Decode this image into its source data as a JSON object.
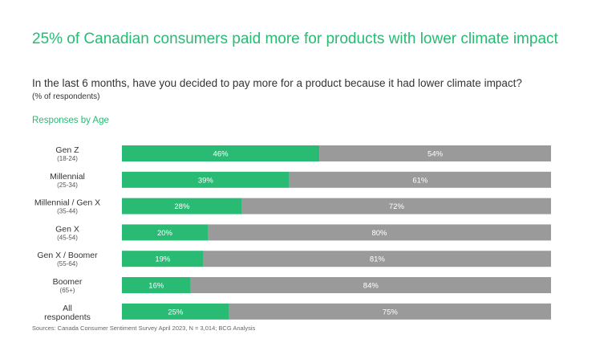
{
  "title": "25% of Canadian consumers paid more for products with lower climate impact",
  "question": "In the last 6 months, have you decided to pay more for a product because it had lower climate impact?",
  "unit_note": "(% of respondents)",
  "section_label": "Responses by Age",
  "source": "Sources: Canada Consumer Sentiment Survey April 2023, N = 3,014; BCG Analysis",
  "colors": {
    "yes": "#29ba74",
    "no": "#9a9a9a",
    "title": "#29ba74"
  },
  "chart_data": {
    "type": "bar",
    "orientation": "horizontal",
    "stacked": true,
    "categories": [
      {
        "label": "Gen Z",
        "sub": "(18-24)"
      },
      {
        "label": "Millennial",
        "sub": "(25-34)"
      },
      {
        "label": "Millennial / Gen X",
        "sub": "(35-44)"
      },
      {
        "label": "Gen X",
        "sub": "(45-54)"
      },
      {
        "label": "Gen X / Boomer",
        "sub": "(55-64)"
      },
      {
        "label": "Boomer",
        "sub": "(65+)"
      },
      {
        "label": "All respondents",
        "sub": ""
      }
    ],
    "series": [
      {
        "values": [
          46,
          39,
          28,
          20,
          19,
          16,
          25
        ],
        "labels": [
          "46%",
          "39%",
          "28%",
          "20%",
          "19%",
          "16%",
          "25%"
        ]
      },
      {
        "values": [
          54,
          61,
          72,
          80,
          81,
          84,
          75
        ],
        "labels": [
          "54%",
          "61%",
          "72%",
          "80%",
          "81%",
          "84%",
          "75%"
        ]
      }
    ],
    "xlim": [
      0,
      100
    ],
    "grid": false,
    "legend": "none"
  }
}
